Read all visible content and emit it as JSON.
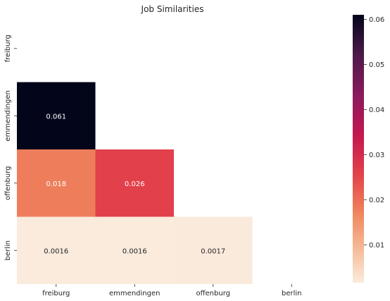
{
  "chart_data": {
    "type": "heatmap",
    "title": "Job Similarities",
    "xlabel": "",
    "ylabel": "",
    "x_categories": [
      "freiburg",
      "emmendingen",
      "offenburg",
      "berlin"
    ],
    "y_categories": [
      "freiburg",
      "emmendingen",
      "offenburg",
      "berlin"
    ],
    "matrix": [
      [
        null,
        null,
        null,
        null
      ],
      [
        0.061,
        null,
        null,
        null
      ],
      [
        0.018,
        0.026,
        null,
        null
      ],
      [
        0.0016,
        0.0016,
        0.0017,
        null
      ]
    ],
    "cell_labels": [
      [
        null,
        null,
        null,
        null
      ],
      [
        "0.061",
        null,
        null,
        null
      ],
      [
        "0.018",
        "0.026",
        null,
        null
      ],
      [
        "0.0016",
        "0.0016",
        "0.0017",
        null
      ]
    ],
    "mask": "upper triangle including diagonal",
    "colormap": "rocket_r",
    "colorbar": {
      "vmin": 0.0016,
      "vmax": 0.061,
      "ticks": [
        0.01,
        0.02,
        0.03,
        0.04,
        0.05,
        0.06
      ],
      "tick_labels": [
        "0.01",
        "0.02",
        "0.03",
        "0.04",
        "0.05",
        "0.06"
      ]
    },
    "grid": false,
    "legend": "colorbar-right"
  }
}
